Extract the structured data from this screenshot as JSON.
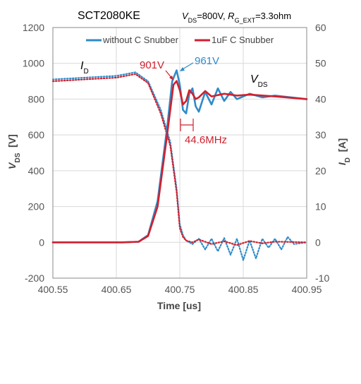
{
  "chart_data": {
    "type": "line",
    "title": "SCT2080KE",
    "conditions": {
      "vds_sym": "V",
      "vds_sub": "DS",
      "vds_val": "=800V, ",
      "rg_sym": "R",
      "rg_sub": "G_EXT",
      "rg_val": "=3.3ohm"
    },
    "xlabel": "Time [us]",
    "ylabel_left": {
      "sym": "V",
      "sub": "DS",
      "unit": "  [V]"
    },
    "ylabel_right": {
      "sym": "I",
      "sub": "D",
      "unit": "  [A]"
    },
    "xlim": [
      400.55,
      400.95
    ],
    "ylim_left": [
      -200,
      1200
    ],
    "ylim_right": [
      -10,
      60
    ],
    "x_ticks": [
      "400.55",
      "400.65",
      "400.75",
      "400.85",
      "400.95"
    ],
    "y_ticks_left": [
      "-200",
      "0",
      "200",
      "400",
      "600",
      "800",
      "1000",
      "1200"
    ],
    "y_ticks_right": [
      "-10",
      "0",
      "10",
      "20",
      "30",
      "40",
      "50",
      "60"
    ],
    "grid": true,
    "legend_position": "top",
    "series": [
      {
        "name": "without C Snubber",
        "quantity": "VDS",
        "style": "solid",
        "color": "#2e8bc9",
        "axis": "left",
        "x": [
          400.55,
          400.6,
          400.66,
          400.685,
          400.7,
          400.715,
          400.73,
          400.738,
          400.745,
          400.75,
          400.755,
          400.76,
          400.765,
          400.77,
          400.775,
          400.78,
          400.79,
          400.8,
          400.81,
          400.82,
          400.83,
          400.84,
          400.86,
          400.88,
          400.9,
          400.95
        ],
        "values": [
          0,
          0,
          0,
          3,
          40,
          230,
          640,
          900,
          961,
          880,
          740,
          720,
          830,
          860,
          760,
          730,
          840,
          770,
          860,
          790,
          840,
          800,
          830,
          810,
          820,
          800
        ]
      },
      {
        "name": "1uF C Snubber",
        "quantity": "VDS",
        "style": "solid",
        "color": "#d0202e",
        "axis": "left",
        "x": [
          400.55,
          400.6,
          400.66,
          400.685,
          400.7,
          400.715,
          400.73,
          400.74,
          400.745,
          400.75,
          400.755,
          400.76,
          400.765,
          400.77,
          400.775,
          400.78,
          400.79,
          400.8,
          400.82,
          400.84,
          400.86,
          400.9,
          400.95
        ],
        "values": [
          0,
          0,
          0,
          3,
          35,
          200,
          600,
          880,
          901,
          850,
          770,
          790,
          850,
          830,
          800,
          810,
          845,
          815,
          830,
          820,
          825,
          815,
          800
        ]
      },
      {
        "name": "without C Snubber",
        "quantity": "ID",
        "style": "dotted",
        "color": "#2e8bc9",
        "axis": "right",
        "x": [
          400.55,
          400.6,
          400.65,
          400.68,
          400.7,
          400.72,
          400.735,
          400.745,
          400.75,
          400.755,
          400.76,
          400.77,
          400.78,
          400.79,
          400.8,
          400.81,
          400.82,
          400.83,
          400.84,
          400.85,
          400.86,
          400.87,
          400.88,
          400.89,
          400.9,
          400.91,
          400.92,
          400.93,
          400.95
        ],
        "values": [
          45.5,
          46.0,
          46.5,
          47.5,
          45.0,
          37.0,
          28.0,
          15.0,
          5.0,
          2.0,
          0.5,
          -0.5,
          1.0,
          -2.0,
          1.0,
          -2.5,
          1.2,
          -3.5,
          1.0,
          -5.0,
          0.5,
          -4.5,
          1.0,
          -1.5,
          1.0,
          -2.0,
          1.5,
          -0.5,
          0.0
        ]
      },
      {
        "name": "1uF C Snubber",
        "quantity": "ID",
        "style": "dotted",
        "color": "#d0202e",
        "axis": "right",
        "x": [
          400.55,
          400.6,
          400.65,
          400.68,
          400.7,
          400.72,
          400.735,
          400.745,
          400.75,
          400.755,
          400.76,
          400.77,
          400.78,
          400.8,
          400.82,
          400.84,
          400.86,
          400.88,
          400.9,
          400.95
        ],
        "values": [
          45.0,
          45.5,
          46.0,
          47.0,
          44.5,
          36.0,
          27.0,
          14.0,
          4.0,
          1.5,
          0.5,
          0.0,
          0.8,
          -0.5,
          0.3,
          -0.8,
          0.4,
          -0.3,
          0.2,
          0.0
        ]
      }
    ],
    "annotations": {
      "id_label": {
        "sym": "I",
        "sub": "D"
      },
      "vds_label": {
        "sym": "V",
        "sub": "DS"
      },
      "peak_red": "901V",
      "peak_blue": "961V",
      "freq": "44.6MHz"
    }
  }
}
